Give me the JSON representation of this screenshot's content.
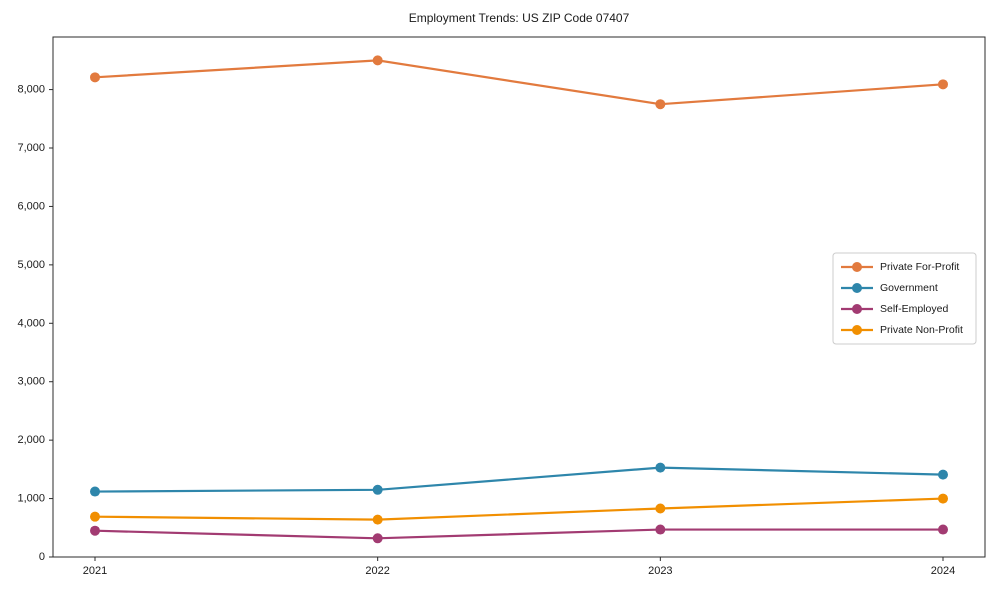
{
  "figure": {
    "background": "#ffffff",
    "axis_color": "#2b2b2b",
    "text_color": "#1a1a1a",
    "legend_border_color": "#cccccc"
  },
  "chart_data": {
    "type": "line",
    "title": "Employment Trends: US ZIP Code 07407",
    "x": [
      2021,
      2022,
      2023,
      2024
    ],
    "x_tick_labels": [
      "2021",
      "2022",
      "2023",
      "2024"
    ],
    "series": [
      {
        "name": "Private For-Profit",
        "color": "#E27A3E",
        "values": [
          8210,
          8500,
          7750,
          8090
        ]
      },
      {
        "name": "Government",
        "color": "#2E86AB",
        "values": [
          1120,
          1150,
          1530,
          1410
        ]
      },
      {
        "name": "Self-Employed",
        "color": "#A23B72",
        "values": [
          450,
          320,
          470,
          470
        ]
      },
      {
        "name": "Private Non-Profit",
        "color": "#F18F01",
        "values": [
          690,
          640,
          830,
          1000
        ]
      }
    ],
    "xlabel": "",
    "ylabel": "",
    "ylim": [
      0,
      8900
    ],
    "yticks": [
      0,
      1000,
      2000,
      3000,
      4000,
      5000,
      6000,
      7000,
      8000
    ],
    "ytick_labels": [
      "0",
      "1,000",
      "2,000",
      "3,000",
      "4,000",
      "5,000",
      "6,000",
      "7,000",
      "8,000"
    ],
    "grid": false,
    "legend_position": "center-right",
    "marker": "circle",
    "line_width": 2.2,
    "marker_radius": 5
  }
}
